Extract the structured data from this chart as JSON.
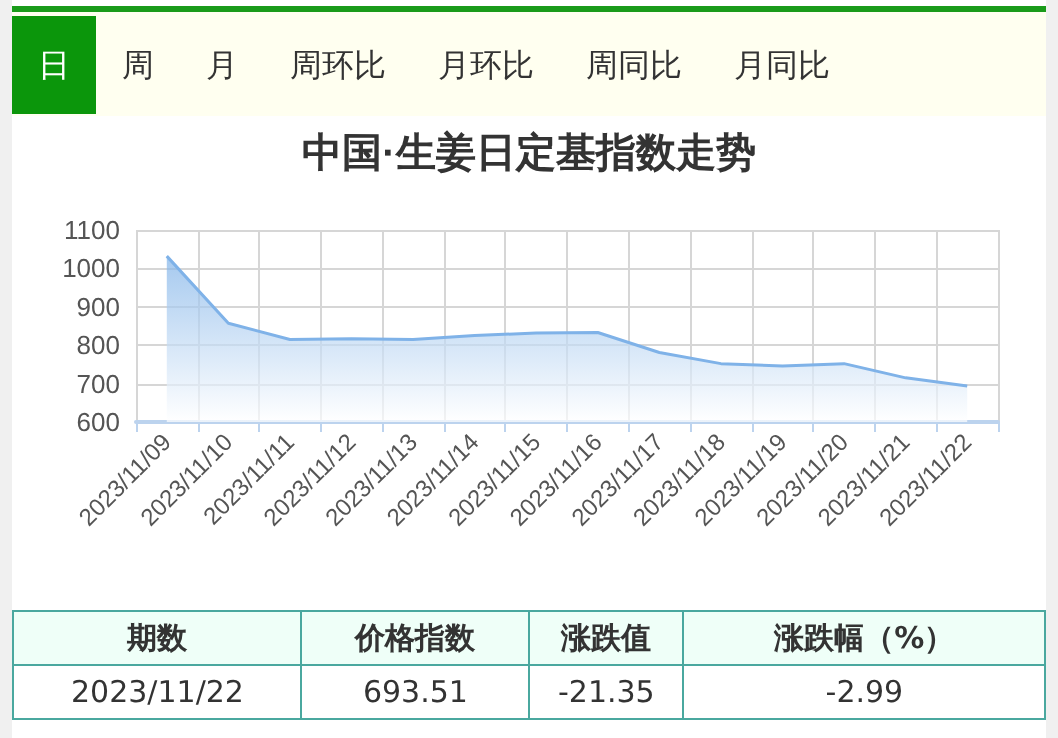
{
  "chart_data": {
    "type": "area",
    "title": "中国·生姜日定基指数走势",
    "categories": [
      "2023/11/09",
      "2023/11/10",
      "2023/11/11",
      "2023/11/12",
      "2023/11/13",
      "2023/11/14",
      "2023/11/15",
      "2023/11/16",
      "2023/11/17",
      "2023/11/18",
      "2023/11/19",
      "2023/11/20",
      "2023/11/21",
      "2023/11/22"
    ],
    "series": [
      {
        "color": "#7fb2e8",
        "values": [
          1032,
          857,
          815,
          817,
          815,
          825,
          832,
          833,
          781,
          752,
          746,
          752,
          715,
          694
        ]
      }
    ],
    "ylim": [
      600,
      1100
    ],
    "yticks": [
      600,
      700,
      800,
      900,
      1000,
      1100
    ],
    "grid": true,
    "marker": "none",
    "annotations": [
      "日",
      "周",
      "月",
      "周环比",
      "月环比",
      "周同比",
      "月同比",
      "期数",
      "价格指数",
      "涨跌值",
      "涨跌幅（%）",
      "2023/11/22",
      "693.51",
      "-21.35",
      "-2.99"
    ]
  }
}
